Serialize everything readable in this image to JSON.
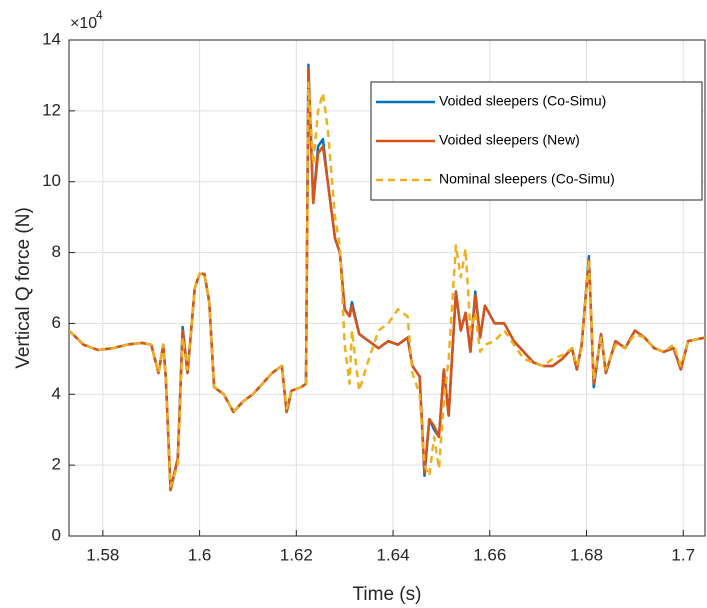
{
  "chart_data": {
    "type": "line",
    "xlabel": "Time (s)",
    "ylabel": "Vertical Q force (N)",
    "y_multiplier": "×10",
    "y_multiplier_exponent": "4",
    "x": [
      1.573,
      1.576,
      1.579,
      1.582,
      1.585,
      1.588,
      1.59,
      1.5915,
      1.5925,
      1.593,
      1.594,
      1.5955,
      1.5965,
      1.5975,
      1.599,
      1.6,
      1.601,
      1.602,
      1.603,
      1.605,
      1.607,
      1.609,
      1.611,
      1.613,
      1.615,
      1.617,
      1.618,
      1.619,
      1.621,
      1.622,
      1.6225,
      1.6235,
      1.6245,
      1.6255,
      1.6265,
      1.628,
      1.629,
      1.63,
      1.631,
      1.6315,
      1.633,
      1.635,
      1.637,
      1.639,
      1.641,
      1.643,
      1.644,
      1.6455,
      1.6465,
      1.6475,
      1.6485,
      1.6495,
      1.6505,
      1.6515,
      1.653,
      1.654,
      1.655,
      1.656,
      1.657,
      1.658,
      1.659,
      1.661,
      1.663,
      1.665,
      1.667,
      1.669,
      1.671,
      1.673,
      1.675,
      1.677,
      1.678,
      1.679,
      1.6805,
      1.6815,
      1.683,
      1.684,
      1.686,
      1.688,
      1.69,
      1.692,
      1.694,
      1.696,
      1.698,
      1.6995,
      1.701,
      1.7045
    ],
    "series": [
      {
        "name": "Voided sleepers (Co-Simu)",
        "color": "#0072bd",
        "dashed": false,
        "values": [
          5.8,
          5.4,
          5.25,
          5.3,
          5.4,
          5.45,
          5.4,
          4.6,
          5.4,
          4.5,
          1.3,
          2.2,
          5.9,
          4.6,
          7.0,
          7.4,
          7.4,
          6.6,
          4.2,
          4.0,
          3.5,
          3.8,
          4.0,
          4.3,
          4.6,
          4.8,
          3.5,
          4.1,
          4.2,
          4.3,
          13.3,
          9.4,
          11.0,
          11.2,
          10.0,
          8.4,
          8.0,
          6.4,
          6.2,
          6.6,
          5.7,
          5.5,
          5.3,
          5.5,
          5.4,
          5.6,
          4.8,
          4.5,
          1.7,
          3.3,
          3.0,
          2.8,
          4.7,
          3.4,
          6.9,
          5.8,
          6.3,
          5.2,
          6.9,
          5.6,
          6.5,
          6.0,
          6.0,
          5.5,
          5.2,
          4.9,
          4.8,
          4.8,
          5.0,
          5.3,
          4.7,
          5.4,
          7.9,
          4.2,
          5.7,
          4.6,
          5.5,
          5.3,
          5.8,
          5.6,
          5.3,
          5.2,
          5.3,
          4.7,
          5.5,
          5.6
        ]
      },
      {
        "name": "Voided sleepers (New)",
        "color": "#d95319",
        "dashed": false,
        "values": [
          5.8,
          5.4,
          5.25,
          5.3,
          5.4,
          5.45,
          5.4,
          4.6,
          5.4,
          4.5,
          1.3,
          2.2,
          5.8,
          4.6,
          7.0,
          7.4,
          7.4,
          6.6,
          4.2,
          4.0,
          3.5,
          3.8,
          4.0,
          4.3,
          4.6,
          4.8,
          3.5,
          4.1,
          4.2,
          4.3,
          13.2,
          9.4,
          10.8,
          11.0,
          10.0,
          8.4,
          8.0,
          6.4,
          6.2,
          6.5,
          5.7,
          5.5,
          5.3,
          5.5,
          5.4,
          5.6,
          4.8,
          4.5,
          1.8,
          3.3,
          3.1,
          2.8,
          4.7,
          3.4,
          6.9,
          5.8,
          6.3,
          5.2,
          6.8,
          5.6,
          6.5,
          6.0,
          6.0,
          5.5,
          5.2,
          4.9,
          4.8,
          4.8,
          5.0,
          5.3,
          4.7,
          5.4,
          7.8,
          4.3,
          5.7,
          4.6,
          5.5,
          5.3,
          5.8,
          5.6,
          5.3,
          5.2,
          5.3,
          4.7,
          5.5,
          5.6
        ]
      },
      {
        "name": "Nominal sleepers (Co-Simu)",
        "color": "#edb120",
        "dashed": true,
        "values": [
          5.8,
          5.4,
          5.25,
          5.3,
          5.4,
          5.45,
          5.4,
          4.6,
          5.4,
          4.5,
          1.4,
          2.0,
          5.6,
          4.7,
          7.0,
          7.4,
          7.4,
          6.6,
          4.2,
          4.0,
          3.5,
          3.8,
          4.0,
          4.3,
          4.6,
          4.8,
          3.6,
          4.1,
          4.2,
          4.3,
          12.8,
          10.5,
          12.0,
          12.5,
          11.5,
          9.0,
          8.2,
          5.4,
          4.3,
          5.8,
          4.1,
          5.0,
          5.8,
          6.0,
          6.4,
          6.2,
          4.6,
          4.0,
          2.0,
          1.7,
          2.8,
          1.9,
          3.8,
          5.0,
          8.2,
          7.3,
          8.1,
          5.8,
          6.3,
          5.2,
          5.4,
          5.5,
          5.8,
          5.4,
          5.0,
          4.9,
          4.8,
          5.0,
          5.1,
          5.3,
          4.8,
          5.3,
          7.8,
          4.4,
          5.6,
          4.7,
          5.4,
          5.3,
          5.7,
          5.6,
          5.3,
          5.2,
          5.4,
          4.8,
          5.5,
          5.6
        ]
      }
    ],
    "xlim": [
      1.573,
      1.7045
    ],
    "xticks": [
      1.58,
      1.6,
      1.62,
      1.64,
      1.66,
      1.68,
      1.7
    ],
    "ylim": [
      0,
      14
    ],
    "yticks": [
      0,
      2,
      4,
      6,
      8,
      10,
      12,
      14
    ],
    "grid": true,
    "legend": "upper right"
  }
}
